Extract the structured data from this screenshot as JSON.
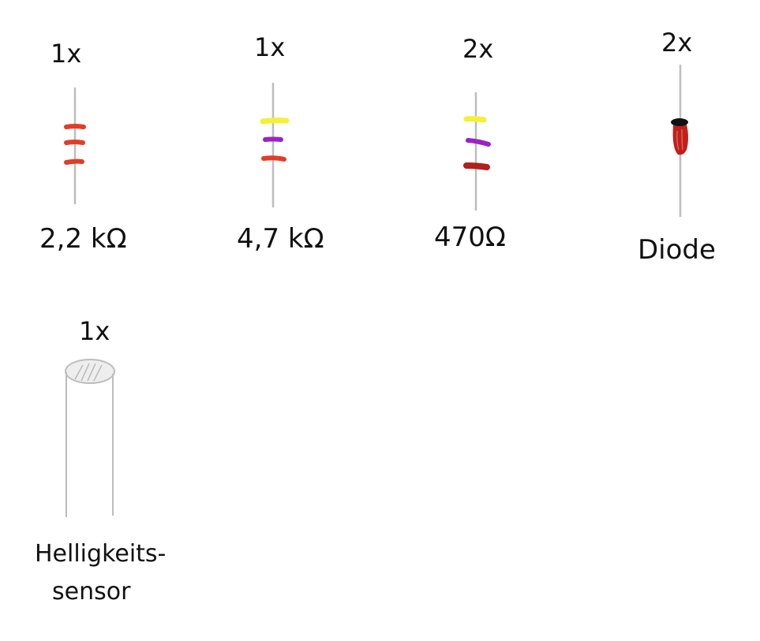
{
  "components": [
    {
      "quantity": "1x",
      "label": "2,2 kΩ",
      "bands": [
        "#e03e28",
        "#e03e28",
        "#e03e28"
      ]
    },
    {
      "quantity": "1x",
      "label": "4,7 kΩ",
      "bands": [
        "#f5f036",
        "#9b22c4",
        "#e03e28"
      ]
    },
    {
      "quantity": "2x",
      "label": "470Ω",
      "bands": [
        "#f5f036",
        "#9b22c4",
        "#b0201e"
      ]
    },
    {
      "quantity": "2x",
      "label": "Diode",
      "body_color": "#c0201c",
      "cap_color": "#111111"
    },
    {
      "quantity": "1x",
      "label_line1": "Helligkeits-",
      "label_line2": "sensor",
      "body_color": "#bdbdbd"
    }
  ],
  "colors": {
    "wire": "#bdbdbd",
    "ink": "#111111"
  }
}
